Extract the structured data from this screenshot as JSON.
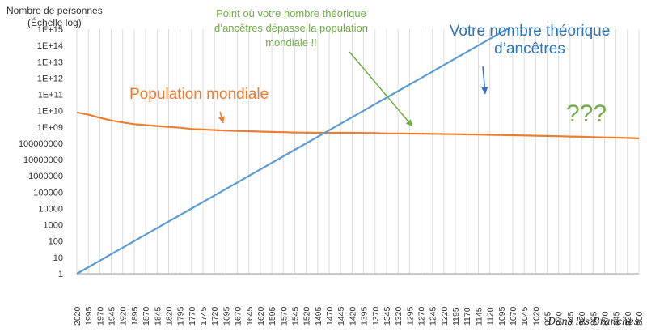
{
  "chart_data": {
    "type": "line",
    "ylabel_line1": "Nombre de personnes",
    "ylabel_line2": "(Échelle log)",
    "y_scale": "log",
    "ylim_exp": [
      0,
      15
    ],
    "y_tick_labels": [
      "1",
      "10",
      "100",
      "1000",
      "10000",
      "100000",
      "1000000",
      "10000000",
      "100000000",
      "1E+09",
      "1E+10",
      "1E+11",
      "1E+12",
      "1E+13",
      "1E+14",
      "1E+15"
    ],
    "x_ticks": [
      "2020",
      "1995",
      "1970",
      "1945",
      "1920",
      "1895",
      "1870",
      "1845",
      "1820",
      "1795",
      "1770",
      "1745",
      "1720",
      "1695",
      "1670",
      "1645",
      "1620",
      "1595",
      "1570",
      "1545",
      "1520",
      "1495",
      "1470",
      "1445",
      "1420",
      "1395",
      "1370",
      "1345",
      "1320",
      "1295",
      "1270",
      "1245",
      "1220",
      "1195",
      "1170",
      "1145",
      "1120",
      "1095",
      "1070",
      "1045",
      "1020",
      "995",
      "970",
      "945",
      "920",
      "895",
      "870",
      "845",
      "820",
      "800"
    ],
    "grid": "vertical lines",
    "series": [
      {
        "name": "Population mondiale",
        "color": "#ed7d31",
        "values": [
          7800000000.0,
          5700000000.0,
          3700000000.0,
          2500000000.0,
          1900000000.0,
          1500000000.0,
          1300000000.0,
          1150000000.0,
          1000000000.0,
          900000000.0,
          750000000.0,
          700000000.0,
          650000000.0,
          600000000.0,
          580000000.0,
          550000000.0,
          520000000.0,
          500000000.0,
          480000000.0,
          460000000.0,
          450000000.0,
          440000000.0,
          440000000.0,
          440000000.0,
          440000000.0,
          430000000.0,
          420000000.0,
          400000000.0,
          400000000.0,
          390000000.0,
          385000000.0,
          380000000.0,
          370000000.0,
          360000000.0,
          350000000.0,
          340000000.0,
          330000000.0,
          320000000.0,
          310000000.0,
          300000000.0,
          290000000.0,
          280000000.0,
          270000000.0,
          260000000.0,
          250000000.0,
          240000000.0,
          230000000.0,
          220000000.0,
          210000000.0,
          200000000.0
        ]
      },
      {
        "name": "Votre nombre théorique d’ancêtres",
        "color": "#5b9bd5",
        "values": [
          1,
          2.51,
          6.31,
          15.85,
          39.81,
          100,
          251.2,
          631,
          1585,
          3981,
          10000,
          25119,
          63096,
          158489,
          398107,
          1000000.0,
          2510000.0,
          6310000.0,
          15850000.0,
          39800000.0,
          100000000.0,
          251000000.0,
          631000000.0,
          1585000000.0,
          3980000000.0,
          10000000000.0,
          25100000000.0,
          63100000000.0,
          158500000000.0,
          398000000000.0,
          1000000000000.0,
          2510000000000.0,
          6310000000000.0,
          15850000000000.0,
          39800000000000.0,
          100000000000000.0,
          251000000000000.0,
          631000000000000.0,
          1585000000000000.0,
          3980000000000000.0,
          1e+16,
          2.51e+16,
          6.31e+16,
          1.585e+17,
          3.98e+17,
          1e+18,
          2.51e+18,
          6.31e+18,
          1.585e+19,
          3.98e+19
        ],
        "note_visible_range_only": true
      }
    ],
    "annotations": [
      {
        "text": "Population mondiale",
        "color": "#ed7d31"
      },
      {
        "text_line1": "Point où votre nombre théorique",
        "text_line2": "d’ancêtres dépasse la population",
        "text_line3": "mondiale !!",
        "color": "#70ad47"
      },
      {
        "text_line1": "Votre nombre théorique",
        "text_line2": "d’ancêtres",
        "color": "#2e75b6"
      },
      {
        "text": "???",
        "color": "#70ad47"
      }
    ]
  },
  "signature": "Dans les Branches"
}
